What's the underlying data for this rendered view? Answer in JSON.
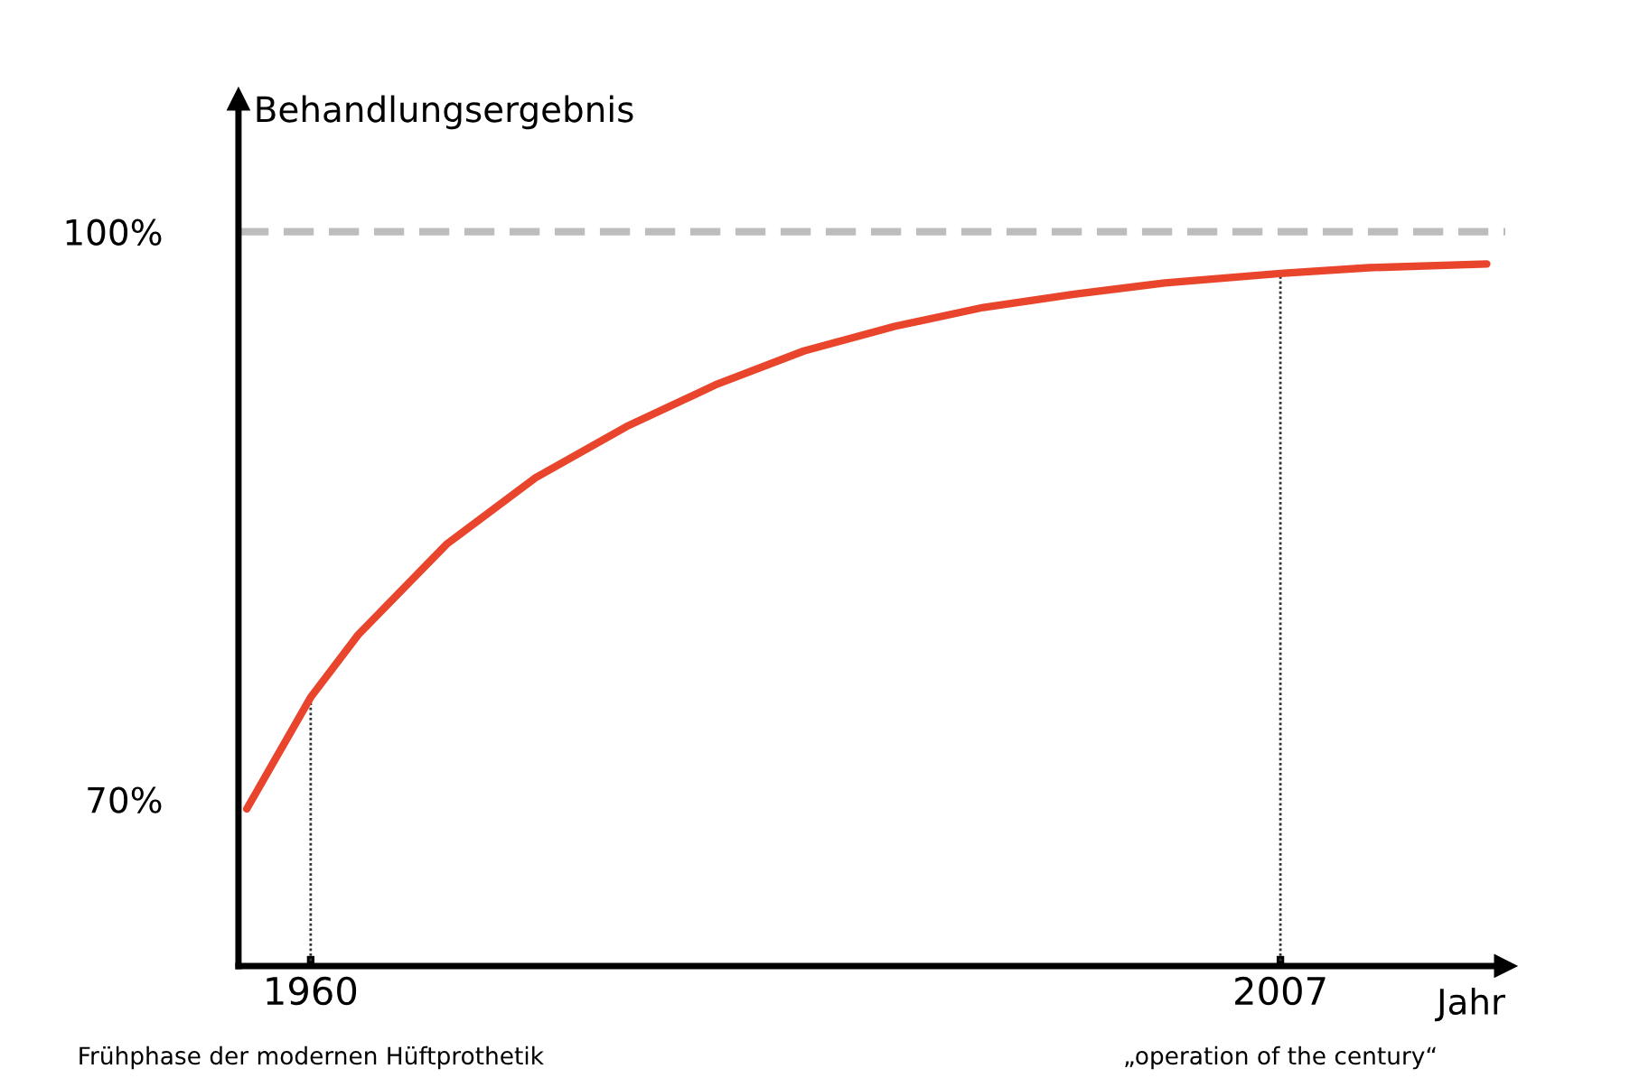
{
  "chart_data": {
    "type": "line",
    "xlabel": "Jahr",
    "ylabel": "Behandlungsergebnis",
    "x": [
      1956.9,
      1960,
      1962.3,
      1966.6,
      1970.9,
      1975.3,
      1979.6,
      1983.9,
      1988.3,
      1992.6,
      1997,
      2001.4,
      2007,
      2011.3,
      2017
    ],
    "series": [
      {
        "color": "#e8452c",
        "values": [
          69.5,
          75.4,
          78.7,
          83.5,
          87.0,
          89.7,
          91.9,
          93.7,
          95.0,
          96.0,
          96.7,
          97.3,
          97.8,
          98.1,
          98.3
        ]
      }
    ],
    "xlim": [
      1956.5,
      2017.9
    ],
    "ylim": [
      61.2,
      107
    ],
    "xticks": [
      1960,
      2007
    ],
    "yticks": [
      {
        "value": 70,
        "label": "70%"
      },
      {
        "value": 100,
        "label": "100%"
      }
    ],
    "ref_lines": [
      {
        "axis": "y",
        "value": 100,
        "color": "#bdbdbd",
        "line_style": "dashed"
      },
      {
        "axis": "x",
        "value": 1960,
        "color": "#333333",
        "line_style": "dotted"
      },
      {
        "axis": "x",
        "value": 2007,
        "color": "#333333",
        "line_style": "dotted"
      }
    ],
    "annotations": [
      "Frühphase der modernen Hüftprothetik",
      "„operation of the century“"
    ],
    "grid": false,
    "legend": false,
    "marker": "none",
    "line_style": "solid"
  }
}
